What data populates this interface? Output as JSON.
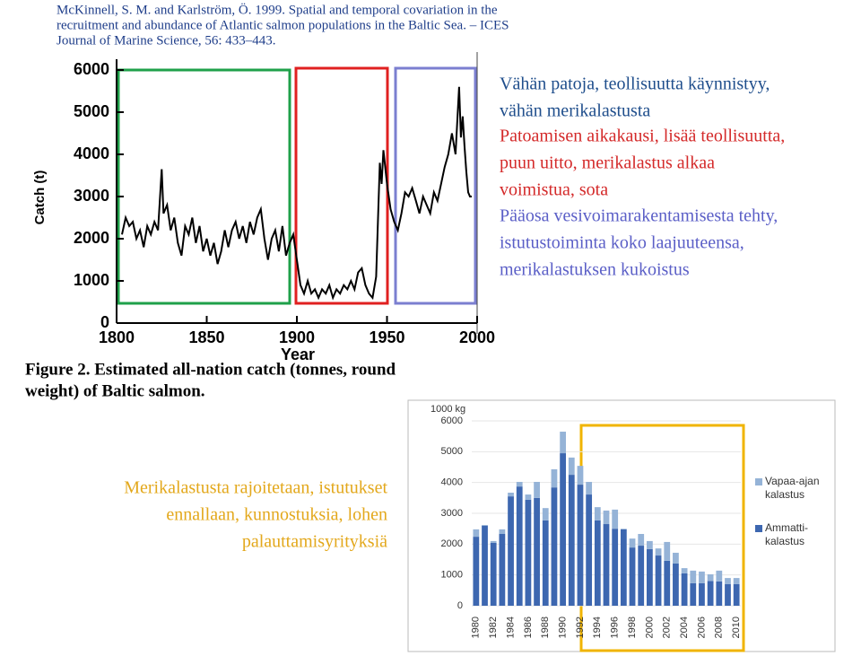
{
  "citation": [
    "McKinnell, S. M. and Karlström, Ö. 1999. Spatial and temporal covariation in the",
    "recruitment and abundance of Atlantic salmon populations in the Baltic Sea. – ICES",
    "Journal of Marine Science, 56: 433–443."
  ],
  "chart_data": [
    {
      "type": "line",
      "ylabel": "Catch (t)",
      "xlabel": "Year",
      "caption": [
        "Figure 2. Estimated all-nation catch (tonnes, round",
        "weight) of Baltic salmon."
      ],
      "color": "#000000",
      "xlim": [
        1800,
        2000
      ],
      "xticks": [
        1800,
        1850,
        1900,
        1950,
        2000
      ],
      "ylim": [
        0,
        6000
      ],
      "yticks": [
        0,
        1000,
        2000,
        3000,
        4000,
        5000,
        6000
      ],
      "x": [
        1803,
        1805,
        1807,
        1809,
        1811,
        1813,
        1815,
        1817,
        1819,
        1821,
        1823,
        1825,
        1826,
        1828,
        1830,
        1832,
        1834,
        1836,
        1838,
        1840,
        1842,
        1844,
        1846,
        1848,
        1850,
        1852,
        1854,
        1856,
        1858,
        1860,
        1862,
        1864,
        1866,
        1868,
        1870,
        1872,
        1874,
        1876,
        1878,
        1880,
        1882,
        1884,
        1886,
        1888,
        1890,
        1892,
        1894,
        1896,
        1898,
        1900,
        1902,
        1904,
        1906,
        1908,
        1910,
        1912,
        1914,
        1916,
        1918,
        1920,
        1922,
        1924,
        1926,
        1928,
        1930,
        1932,
        1934,
        1936,
        1938,
        1940,
        1942,
        1944,
        1946,
        1947,
        1948,
        1950,
        1952,
        1954,
        1956,
        1958,
        1960,
        1962,
        1964,
        1966,
        1968,
        1970,
        1972,
        1974,
        1976,
        1978,
        1980,
        1982,
        1984,
        1986,
        1988,
        1990,
        1991,
        1992,
        1993,
        1994,
        1995,
        1996,
        1997
      ],
      "values": [
        2100,
        2500,
        2300,
        2400,
        2000,
        2200,
        1800,
        2300,
        2100,
        2400,
        2200,
        3650,
        2600,
        2800,
        2200,
        2500,
        1900,
        1600,
        2300,
        2100,
        2500,
        1900,
        2300,
        1700,
        2000,
        1600,
        1900,
        1400,
        1700,
        2200,
        1800,
        2200,
        2400,
        2000,
        2300,
        1900,
        2400,
        2100,
        2500,
        2700,
        2000,
        1500,
        2000,
        2200,
        1700,
        2300,
        1600,
        1900,
        2100,
        1500,
        900,
        700,
        1000,
        700,
        800,
        600,
        800,
        700,
        900,
        600,
        800,
        700,
        900,
        800,
        1000,
        800,
        1200,
        1300,
        900,
        700,
        600,
        1100,
        3800,
        3300,
        4100,
        3300,
        2700,
        2400,
        2200,
        2600,
        3100,
        3000,
        3200,
        2900,
        2600,
        3000,
        2800,
        2600,
        3100,
        2900,
        3300,
        3700,
        4000,
        4500,
        4000,
        5600,
        4400,
        4900,
        4200,
        3600,
        3100,
        3000,
        3000
      ]
    },
    {
      "type": "stacked-bar",
      "y_unit": "1000 kg",
      "legend": "right",
      "ylim": [
        0,
        6000
      ],
      "yticks": [
        0,
        1000,
        2000,
        3000,
        4000,
        5000,
        6000
      ],
      "categories": [
        "1980",
        null,
        "1982",
        null,
        "1984",
        null,
        "1986",
        null,
        "1988",
        null,
        "1990",
        null,
        "1992",
        null,
        "1994",
        null,
        "1996",
        null,
        "1998",
        null,
        "2000",
        null,
        "2002",
        null,
        "2004",
        null,
        "2006",
        null,
        "2008",
        null,
        "2010"
      ],
      "series": [
        {
          "name": "Ammatti-kalastus",
          "color": "#3d67b0",
          "values": [
            2240,
            2600,
            2040,
            2330,
            3550,
            3870,
            3440,
            3500,
            2770,
            3840,
            4950,
            4250,
            3930,
            3610,
            2770,
            2650,
            2500,
            2480,
            1890,
            1950,
            1840,
            1630,
            1460,
            1370,
            1050,
            730,
            730,
            800,
            790,
            700,
            700
          ]
        },
        {
          "name": "Vapaa-ajan kalastus",
          "color": "#95b3d7",
          "values": [
            240,
            20,
            60,
            150,
            120,
            150,
            170,
            520,
            400,
            590,
            700,
            560,
            610,
            410,
            430,
            440,
            620,
            20,
            290,
            380,
            260,
            230,
            610,
            350,
            170,
            410,
            380,
            220,
            350,
            200,
            200
          ]
        }
      ]
    }
  ],
  "annotations": [
    {
      "color": "#1f4e8c",
      "lines": [
        "Vähän patoja, teollisuutta käynnistyy,",
        "vähän merikalastusta"
      ]
    },
    {
      "color": "#d42a2a",
      "lines": [
        "Patoamisen aikakausi, lisää teollisuutta,",
        "puun uitto, merikalastus alkaa",
        "voimistua, sota"
      ]
    },
    {
      "color": "#5b5fc7",
      "lines": [
        "Pääosa vesivoimarakentamisesta tehty,",
        "istutustoiminta koko laajuuteensa,",
        "merikalastuksen kukoistus"
      ]
    },
    {
      "color": "#e3a81c",
      "lines": [
        "Merikalastusta rajoitetaan, istutukset",
        "ennallaan, kunnostuksia, lohen",
        "palauttamisyrityksiä"
      ]
    }
  ]
}
